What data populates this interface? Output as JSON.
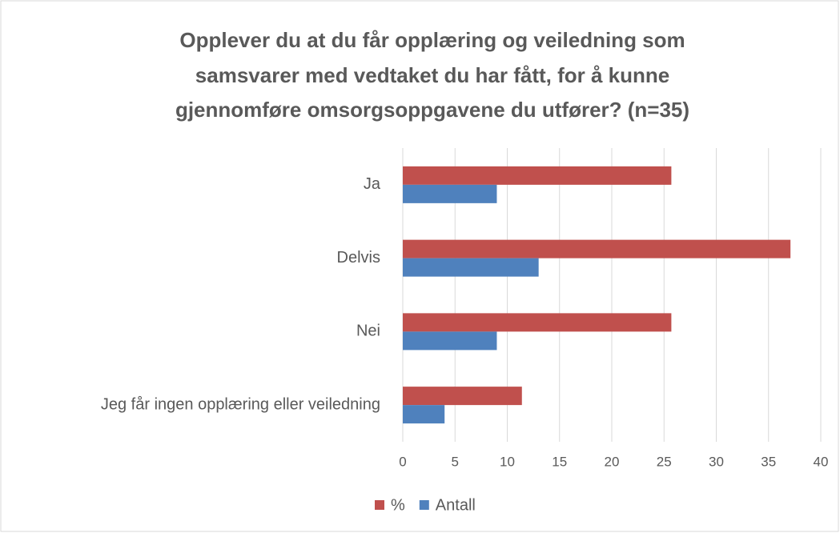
{
  "chart_data": {
    "type": "bar",
    "orientation": "horizontal",
    "title": [
      "Opplever du at du får opplæring og veiledning som",
      "samsvarer med vedtaket du har fått, for å kunne",
      "gjennomføre omsorgsoppgavene du utfører? (n=35)"
    ],
    "categories": [
      "Ja",
      "Delvis",
      "Nei",
      "Jeg får ingen opplæring eller veiledning"
    ],
    "series": [
      {
        "name": "%",
        "color": "#c0504d",
        "values": [
          25.7,
          37.1,
          25.7,
          11.4
        ]
      },
      {
        "name": "Antall",
        "color": "#4f81bd",
        "values": [
          9,
          13,
          9,
          4
        ]
      }
    ],
    "xlim": [
      0,
      40
    ],
    "xticks": [
      0,
      5,
      10,
      15,
      20,
      25,
      30,
      35,
      40
    ],
    "grid": true,
    "legend": "bottom"
  }
}
